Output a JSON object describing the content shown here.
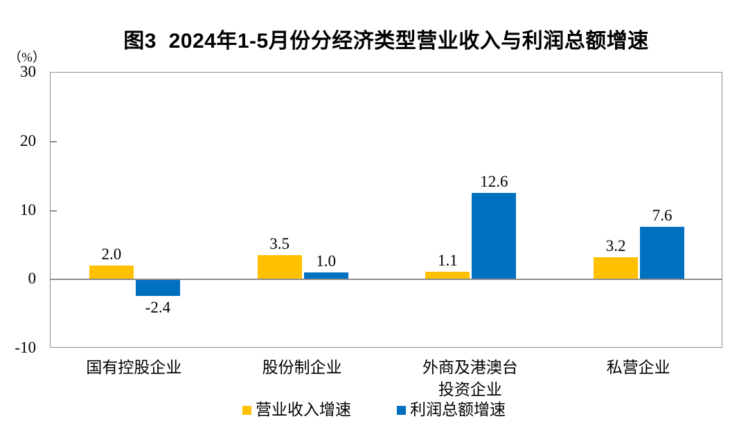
{
  "title": "图3  2024年1-5月份分经济类型营业收入与利润总额增速",
  "y_axis": {
    "unit_label": "（%）",
    "tick_labels": [
      "30",
      "20",
      "10",
      "0",
      "-10"
    ]
  },
  "chart_data": {
    "type": "bar",
    "title": "图3  2024年1-5月份分经济类型营业收入与利润总额增速",
    "ylabel": "（%）",
    "categories": [
      "国有控股企业",
      "股份制企业",
      "外商及港澳台\n投资企业",
      "私营企业"
    ],
    "series": [
      {
        "name": "营业收入增速",
        "color": "#FFC000",
        "values": [
          2.0,
          3.5,
          1.1,
          3.2
        ]
      },
      {
        "name": "利润总额增速",
        "color": "#0070C0",
        "values": [
          -2.4,
          1.0,
          12.6,
          7.6
        ]
      }
    ],
    "ylim": [
      -10,
      30
    ],
    "yticks": [
      30,
      20,
      10,
      0,
      -10
    ],
    "grid": false,
    "legend_position": "bottom",
    "value_labels": true,
    "value_label_decimals": 1
  },
  "colors": {
    "bar_revenue": "#FFC000",
    "bar_profit": "#0070C0",
    "axis_gray": "#8C8C8C",
    "text": "#000000",
    "background": "#FFFFFF"
  }
}
